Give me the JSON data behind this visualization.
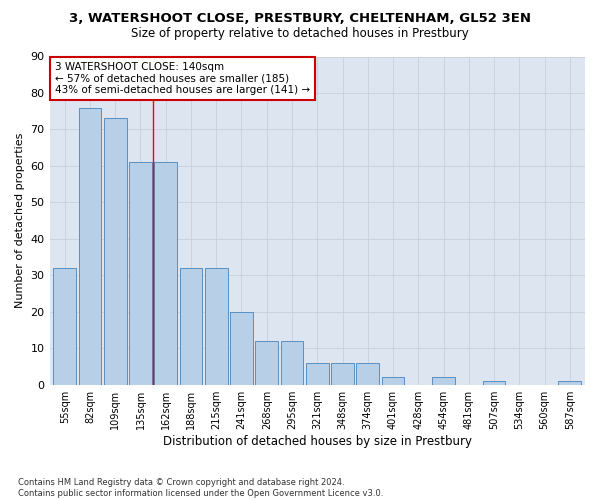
{
  "title": "3, WATERSHOOT CLOSE, PRESTBURY, CHELTENHAM, GL52 3EN",
  "subtitle": "Size of property relative to detached houses in Prestbury",
  "xlabel": "Distribution of detached houses by size in Prestbury",
  "ylabel": "Number of detached properties",
  "footnote": "Contains HM Land Registry data © Crown copyright and database right 2024.\nContains public sector information licensed under the Open Government Licence v3.0.",
  "bar_labels": [
    "55sqm",
    "82sqm",
    "109sqm",
    "135sqm",
    "162sqm",
    "188sqm",
    "215sqm",
    "241sqm",
    "268sqm",
    "295sqm",
    "321sqm",
    "348sqm",
    "374sqm",
    "401sqm",
    "428sqm",
    "454sqm",
    "481sqm",
    "507sqm",
    "534sqm",
    "560sqm",
    "587sqm"
  ],
  "bar_values": [
    32,
    76,
    73,
    61,
    61,
    32,
    32,
    20,
    12,
    12,
    6,
    6,
    6,
    2,
    0,
    2,
    0,
    1,
    0,
    0,
    1
  ],
  "bar_color": "#b8cfe8",
  "bar_edge_color": "#5a8fc0",
  "grid_color": "#c8d0dc",
  "bg_color": "#dde5f0",
  "red_line_x": 3.5,
  "annotation_text": "3 WATERSHOOT CLOSE: 140sqm\n← 57% of detached houses are smaller (185)\n43% of semi-detached houses are larger (141) →",
  "annotation_box_color": "#ffffff",
  "annotation_box_edge": "#cc0000",
  "ylim": [
    0,
    90
  ],
  "yticks": [
    0,
    10,
    20,
    30,
    40,
    50,
    60,
    70,
    80,
    90
  ]
}
